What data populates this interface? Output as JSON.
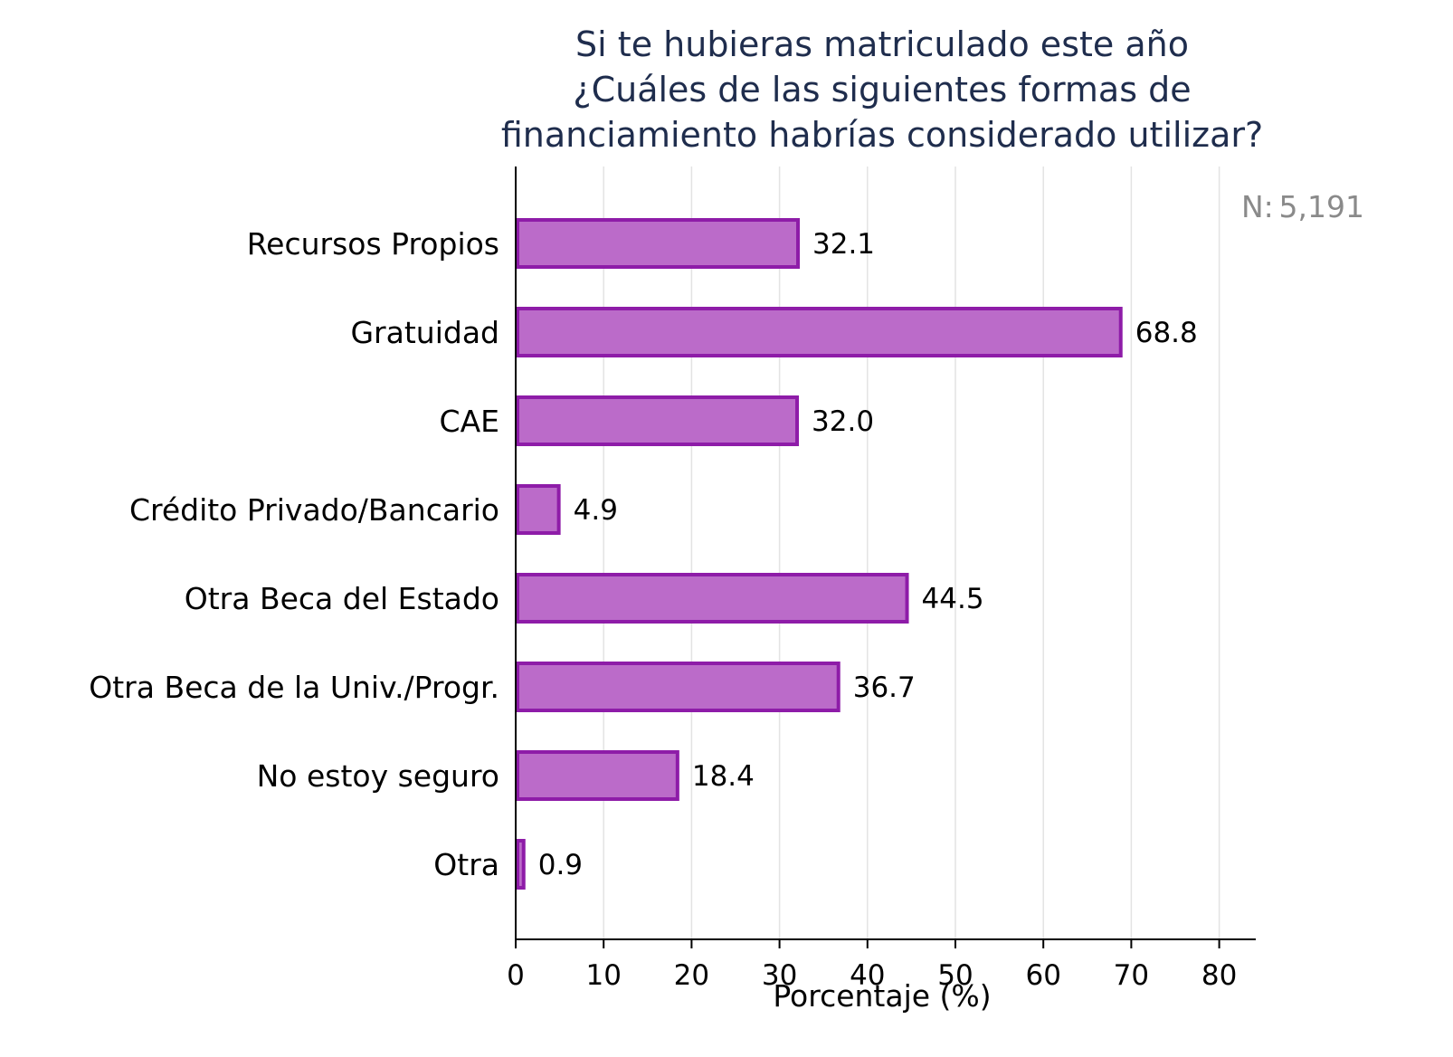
{
  "chart_data": {
    "type": "bar",
    "orientation": "horizontal",
    "title_lines": [
      "Si te hubieras matriculado este año",
      "¿Cuáles de las siguientes formas de",
      "financiamiento habrías considerado utilizar?"
    ],
    "categories": [
      "Recursos Propios",
      "Gratuidad",
      "CAE",
      "Crédito Privado/Bancario",
      "Otra Beca del Estado",
      "Otra Beca de la Univ./Progr.",
      "No estoy seguro",
      "Otra"
    ],
    "values": [
      32.1,
      68.8,
      32.0,
      4.9,
      44.5,
      36.7,
      18.4,
      0.9
    ],
    "value_labels": [
      "32.1",
      "68.8",
      "32.0",
      "4.9",
      "44.5",
      "36.7",
      "18.4",
      "0.9"
    ],
    "xlabel": "Porcentaje (%)",
    "ylabel": "",
    "xlim": [
      0,
      84
    ],
    "xticks": [
      0,
      10,
      20,
      30,
      40,
      50,
      60,
      70,
      80
    ],
    "grid": true,
    "legend": "none",
    "annotation": {
      "label": "N:",
      "value": "5,191"
    },
    "colors": {
      "bar_fill": "#bb6bc9",
      "bar_stroke": "#8e1ca8",
      "grid": "#e3e3e3",
      "axis": "#000000",
      "title": "#1f2d4d",
      "annotation": "#8a8a8a"
    }
  }
}
